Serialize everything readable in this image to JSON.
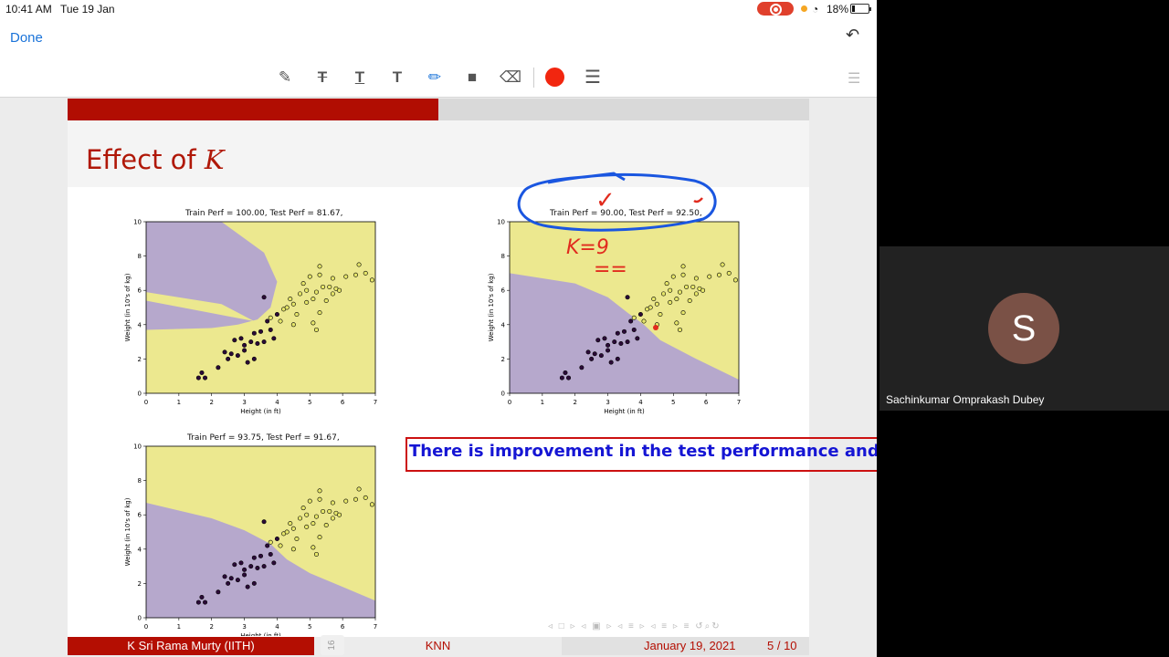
{
  "status_bar": {
    "time": "10:41 AM",
    "date": "Tue 19 Jan",
    "battery": "18%"
  },
  "nav": {
    "done_label": "Done"
  },
  "toolbar": {
    "tools": [
      "pen-tool",
      "strikethrough-text-tool",
      "underline-text-tool",
      "text-tool",
      "pencil-tool",
      "comment-tool",
      "eraser-tool"
    ],
    "active_tool": "pencil-tool",
    "ink_color": "#f2260f"
  },
  "slide": {
    "title_prefix": "Effect of ",
    "title_var": "K",
    "progress_fraction": 0.5,
    "annotation": "There is improvement in the test performance and islands are almost gone",
    "footer": {
      "author": "K Sri Rama Murty  (IITH)",
      "topic": "KNN",
      "date": "January 19, 2021",
      "page": "5 / 10"
    },
    "page_tab": "16",
    "handwriting": {
      "k_label": "K=9",
      "underline": "==",
      "check": "✓"
    }
  },
  "participant": {
    "initial": "S",
    "name": "Sachinkumar Omprakash Dubey"
  },
  "colors": {
    "accent": "#1a73d9",
    "beamer_red": "#b40e02",
    "region_purple": "#b6a8cc",
    "region_yellow": "#ece88f",
    "ink_blue": "#1515d4"
  },
  "chart_data": [
    {
      "type": "scatter",
      "title": "Train Perf = 100.00, Test Perf = 81.67,",
      "xlabel": "Height (in ft)",
      "ylabel": "Weight (in 10's of kg)",
      "xlim": [
        0,
        7
      ],
      "ylim": [
        0,
        10
      ],
      "xticks": [
        0,
        1,
        2,
        3,
        4,
        5,
        6,
        7
      ],
      "yticks": [
        0,
        2,
        4,
        6,
        8,
        10
      ],
      "series": [
        {
          "name": "",
          "color": "#2b0a38",
          "points": [
            [
              1.7,
              1.2
            ],
            [
              1.8,
              0.9
            ],
            [
              1.6,
              0.9
            ],
            [
              2.2,
              1.5
            ],
            [
              2.4,
              2.4
            ],
            [
              2.6,
              2.3
            ],
            [
              2.5,
              2.0
            ],
            [
              2.8,
              2.2
            ],
            [
              2.7,
              3.1
            ],
            [
              2.9,
              3.2
            ],
            [
              3.0,
              2.8
            ],
            [
              3.0,
              2.5
            ],
            [
              3.1,
              1.8
            ],
            [
              3.3,
              2.0
            ],
            [
              3.2,
              3.0
            ],
            [
              3.3,
              3.5
            ],
            [
              3.5,
              3.6
            ],
            [
              3.4,
              2.9
            ],
            [
              3.6,
              3.0
            ],
            [
              3.8,
              3.7
            ],
            [
              3.7,
              4.2
            ],
            [
              4.0,
              4.6
            ],
            [
              3.9,
              3.2
            ],
            [
              3.6,
              5.6
            ]
          ]
        },
        {
          "name": "",
          "color": "#e6e66a",
          "points": [
            [
              3.8,
              4.4
            ],
            [
              4.2,
              4.9
            ],
            [
              4.4,
              5.5
            ],
            [
              4.5,
              5.2
            ],
            [
              4.6,
              4.6
            ],
            [
              4.7,
              5.8
            ],
            [
              4.8,
              6.4
            ],
            [
              4.9,
              5.3
            ],
            [
              4.9,
              6.0
            ],
            [
              5.0,
              6.8
            ],
            [
              5.1,
              5.5
            ],
            [
              5.1,
              4.1
            ],
            [
              5.2,
              5.9
            ],
            [
              5.2,
              3.7
            ],
            [
              5.3,
              6.9
            ],
            [
              5.3,
              7.4
            ],
            [
              5.4,
              6.2
            ],
            [
              5.5,
              5.4
            ],
            [
              5.6,
              6.2
            ],
            [
              5.7,
              6.7
            ],
            [
              5.7,
              5.8
            ],
            [
              5.8,
              6.1
            ],
            [
              5.9,
              6.0
            ],
            [
              6.1,
              6.8
            ],
            [
              6.4,
              6.9
            ],
            [
              6.5,
              7.5
            ],
            [
              6.7,
              7.0
            ],
            [
              6.9,
              6.6
            ],
            [
              5.3,
              4.7
            ],
            [
              4.5,
              4.0
            ],
            [
              4.3,
              5.0
            ],
            [
              4.1,
              4.2
            ]
          ]
        }
      ]
    },
    {
      "type": "scatter",
      "title": "Train Perf = 90.00, Test Perf = 92.50,",
      "xlabel": "Height (in ft)",
      "ylabel": "Weight (in 10's of kg)",
      "xlim": [
        0,
        7
      ],
      "ylim": [
        0,
        10
      ],
      "xticks": [
        0,
        1,
        2,
        3,
        4,
        5,
        6,
        7
      ],
      "yticks": [
        0,
        2,
        4,
        6,
        8,
        10
      ],
      "series": [
        {
          "name": "",
          "color": "#2b0a38",
          "points": [
            [
              1.7,
              1.2
            ],
            [
              1.8,
              0.9
            ],
            [
              1.6,
              0.9
            ],
            [
              2.2,
              1.5
            ],
            [
              2.4,
              2.4
            ],
            [
              2.6,
              2.3
            ],
            [
              2.5,
              2.0
            ],
            [
              2.8,
              2.2
            ],
            [
              2.7,
              3.1
            ],
            [
              2.9,
              3.2
            ],
            [
              3.0,
              2.8
            ],
            [
              3.0,
              2.5
            ],
            [
              3.1,
              1.8
            ],
            [
              3.3,
              2.0
            ],
            [
              3.2,
              3.0
            ],
            [
              3.3,
              3.5
            ],
            [
              3.5,
              3.6
            ],
            [
              3.4,
              2.9
            ],
            [
              3.6,
              3.0
            ],
            [
              3.8,
              3.7
            ],
            [
              3.7,
              4.2
            ],
            [
              4.0,
              4.6
            ],
            [
              3.9,
              3.2
            ],
            [
              3.6,
              5.6
            ]
          ]
        },
        {
          "name": "",
          "color": "#e6e66a",
          "points": [
            [
              3.8,
              4.4
            ],
            [
              4.2,
              4.9
            ],
            [
              4.4,
              5.5
            ],
            [
              4.5,
              5.2
            ],
            [
              4.6,
              4.6
            ],
            [
              4.7,
              5.8
            ],
            [
              4.8,
              6.4
            ],
            [
              4.9,
              5.3
            ],
            [
              4.9,
              6.0
            ],
            [
              5.0,
              6.8
            ],
            [
              5.1,
              5.5
            ],
            [
              5.1,
              4.1
            ],
            [
              5.2,
              5.9
            ],
            [
              5.2,
              3.7
            ],
            [
              5.3,
              6.9
            ],
            [
              5.3,
              7.4
            ],
            [
              5.4,
              6.2
            ],
            [
              5.5,
              5.4
            ],
            [
              5.6,
              6.2
            ],
            [
              5.7,
              6.7
            ],
            [
              5.7,
              5.8
            ],
            [
              5.8,
              6.1
            ],
            [
              5.9,
              6.0
            ],
            [
              6.1,
              6.8
            ],
            [
              6.4,
              6.9
            ],
            [
              6.5,
              7.5
            ],
            [
              6.7,
              7.0
            ],
            [
              6.9,
              6.6
            ],
            [
              5.3,
              4.7
            ],
            [
              4.5,
              4.0
            ],
            [
              4.3,
              5.0
            ],
            [
              4.1,
              4.2
            ]
          ]
        }
      ]
    },
    {
      "type": "scatter",
      "title": "Train Perf = 93.75, Test Perf = 91.67,",
      "xlabel": "Height (in ft)",
      "ylabel": "Weight (in 10's of kg)",
      "xlim": [
        0,
        7
      ],
      "ylim": [
        0,
        10
      ],
      "xticks": [
        0,
        1,
        2,
        3,
        4,
        5,
        6,
        7
      ],
      "yticks": [
        0,
        2,
        4,
        6,
        8,
        10
      ],
      "series": [
        {
          "name": "",
          "color": "#2b0a38",
          "points": [
            [
              1.7,
              1.2
            ],
            [
              1.8,
              0.9
            ],
            [
              1.6,
              0.9
            ],
            [
              2.2,
              1.5
            ],
            [
              2.4,
              2.4
            ],
            [
              2.6,
              2.3
            ],
            [
              2.5,
              2.0
            ],
            [
              2.8,
              2.2
            ],
            [
              2.7,
              3.1
            ],
            [
              2.9,
              3.2
            ],
            [
              3.0,
              2.8
            ],
            [
              3.0,
              2.5
            ],
            [
              3.1,
              1.8
            ],
            [
              3.3,
              2.0
            ],
            [
              3.2,
              3.0
            ],
            [
              3.3,
              3.5
            ],
            [
              3.5,
              3.6
            ],
            [
              3.4,
              2.9
            ],
            [
              3.6,
              3.0
            ],
            [
              3.8,
              3.7
            ],
            [
              3.7,
              4.2
            ],
            [
              4.0,
              4.6
            ],
            [
              3.9,
              3.2
            ],
            [
              3.6,
              5.6
            ]
          ]
        },
        {
          "name": "",
          "color": "#e6e66a",
          "points": [
            [
              3.8,
              4.4
            ],
            [
              4.2,
              4.9
            ],
            [
              4.4,
              5.5
            ],
            [
              4.5,
              5.2
            ],
            [
              4.6,
              4.6
            ],
            [
              4.7,
              5.8
            ],
            [
              4.8,
              6.4
            ],
            [
              4.9,
              5.3
            ],
            [
              4.9,
              6.0
            ],
            [
              5.0,
              6.8
            ],
            [
              5.1,
              5.5
            ],
            [
              5.1,
              4.1
            ],
            [
              5.2,
              5.9
            ],
            [
              5.2,
              3.7
            ],
            [
              5.3,
              6.9
            ],
            [
              5.3,
              7.4
            ],
            [
              5.4,
              6.2
            ],
            [
              5.5,
              5.4
            ],
            [
              5.6,
              6.2
            ],
            [
              5.7,
              6.7
            ],
            [
              5.7,
              5.8
            ],
            [
              5.8,
              6.1
            ],
            [
              5.9,
              6.0
            ],
            [
              6.1,
              6.8
            ],
            [
              6.4,
              6.9
            ],
            [
              6.5,
              7.5
            ],
            [
              6.7,
              7.0
            ],
            [
              6.9,
              6.6
            ],
            [
              5.3,
              4.7
            ],
            [
              4.5,
              4.0
            ],
            [
              4.3,
              5.0
            ],
            [
              4.1,
              4.2
            ]
          ]
        }
      ]
    }
  ]
}
